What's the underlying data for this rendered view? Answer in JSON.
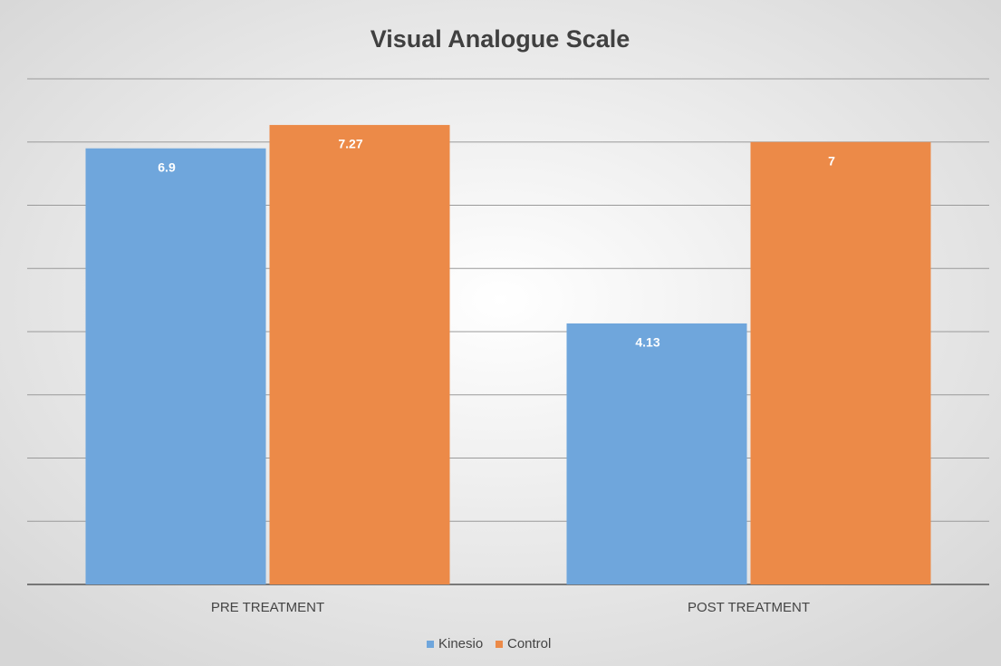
{
  "chart_data": {
    "type": "bar",
    "title": "Visual Analogue Scale",
    "categories": [
      "PRE TREATMENT",
      "POST TREATMENT"
    ],
    "series": [
      {
        "name": "Kinesio",
        "color": "#6fa6dc",
        "values": [
          6.9,
          4.13
        ]
      },
      {
        "name": "Control",
        "color": "#ec8a48",
        "values": [
          7.27,
          7
        ]
      }
    ],
    "ylim": [
      0,
      8
    ],
    "yticks": [
      0,
      1,
      2,
      3,
      4,
      5,
      6,
      7,
      8
    ],
    "grid": true,
    "legend": "bottom"
  }
}
